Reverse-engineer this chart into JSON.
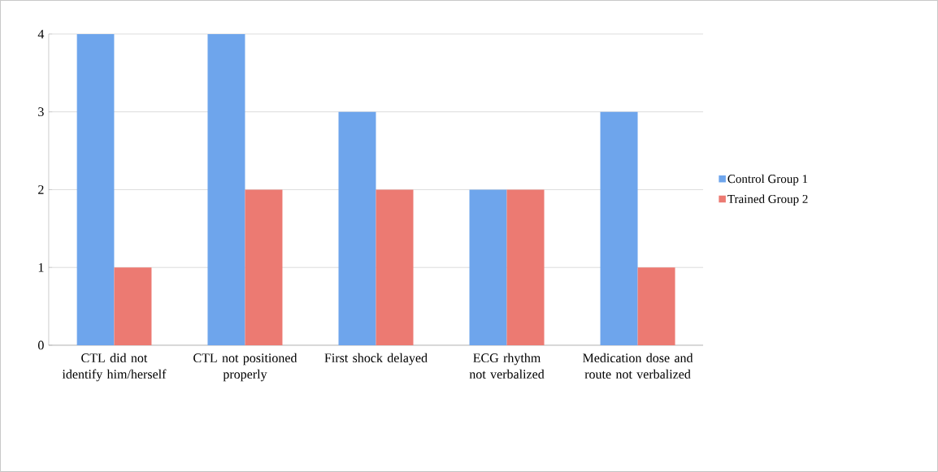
{
  "chart_data": {
    "type": "bar",
    "categories": [
      "CTL did not identify him/herself",
      "CTL not positioned properly",
      "First shock delayed",
      "ECG rhythm not verbalized",
      "Medication dose and route not verbalized"
    ],
    "series": [
      {
        "name": "Control Group 1",
        "color": "#6ea5ec",
        "values": [
          4,
          4,
          3,
          2,
          3
        ]
      },
      {
        "name": "Trained Group 2",
        "color": "#ec7a72",
        "values": [
          1,
          2,
          2,
          2,
          1
        ]
      }
    ],
    "ylim": [
      0,
      4
    ],
    "yticks": [
      0,
      1,
      2,
      3,
      4
    ],
    "grid": "y",
    "legend": "right"
  }
}
